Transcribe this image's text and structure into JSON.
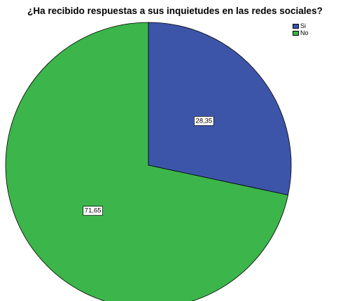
{
  "chart_data": {
    "type": "pie",
    "title": "¿Ha recibido respuestas a sus inquietudes en las redes sociales?",
    "slices": [
      {
        "name": "Si",
        "value": 28.35,
        "label": "28,35",
        "color": "#3d55a9"
      },
      {
        "name": "No",
        "value": 71.65,
        "label": "71,65",
        "color": "#3cb54a"
      }
    ],
    "legend": {
      "position": "top-right"
    },
    "start_angle": "12 o'clock",
    "direction": "clockwise"
  }
}
